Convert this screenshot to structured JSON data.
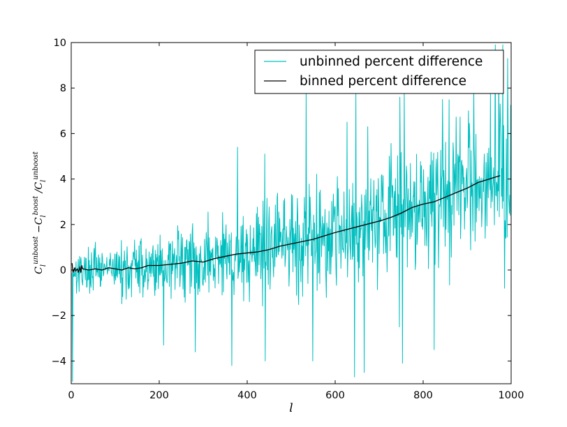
{
  "chart_data": {
    "type": "line",
    "title": "",
    "xlabel": "l",
    "ylabel_parts": [
      "C",
      "l",
      "unboost",
      " −C",
      "l",
      "boost",
      " /C",
      "l",
      "unboost"
    ],
    "xlim": [
      0,
      1000
    ],
    "ylim": [
      -5,
      10
    ],
    "xticks": [
      0,
      200,
      400,
      600,
      800,
      1000
    ],
    "xtick_labels": [
      "0",
      "200",
      "400",
      "600",
      "800",
      "1000"
    ],
    "yticks": [
      -4,
      -2,
      0,
      2,
      4,
      6,
      8,
      10
    ],
    "ytick_labels": [
      "−4",
      "−2",
      "0",
      "2",
      "4",
      "6",
      "8",
      "10"
    ],
    "grid": false,
    "legend_position": "top-right",
    "series": [
      {
        "name": "unbinned percent difference",
        "color": "#00bfbf",
        "kind": "noisy",
        "x_start": 2,
        "x_end": 1000,
        "x_step": 1,
        "trend_x": [
          2,
          30,
          100,
          200,
          300,
          400,
          500,
          600,
          700,
          800,
          900,
          1000
        ],
        "trend_y": [
          0.0,
          0.0,
          0.0,
          0.2,
          0.4,
          0.75,
          1.15,
          1.75,
          2.25,
          3.0,
          3.7,
          4.3
        ],
        "spread_x": [
          2,
          100,
          200,
          300,
          400,
          500,
          600,
          700,
          800,
          900,
          1000
        ],
        "spread_y": [
          0.6,
          0.8,
          1.0,
          1.2,
          1.4,
          1.6,
          1.8,
          1.9,
          2.0,
          2.1,
          2.2
        ],
        "seed": 17,
        "spikes": [
          {
            "x": 3,
            "y": -4.9
          },
          {
            "x": 210,
            "y": -3.3
          },
          {
            "x": 282,
            "y": -3.6
          },
          {
            "x": 365,
            "y": -4.2
          },
          {
            "x": 378,
            "y": 5.4
          },
          {
            "x": 441,
            "y": -4.0
          },
          {
            "x": 440,
            "y": 5.1
          },
          {
            "x": 534,
            "y": 7.9
          },
          {
            "x": 549,
            "y": -4.0
          },
          {
            "x": 627,
            "y": 6.5
          },
          {
            "x": 644,
            "y": -4.7
          },
          {
            "x": 647,
            "y": 7.9
          },
          {
            "x": 666,
            "y": -4.5
          },
          {
            "x": 674,
            "y": 6.3
          },
          {
            "x": 746,
            "y": -2.5
          },
          {
            "x": 747,
            "y": 7.6
          },
          {
            "x": 753,
            "y": -4.1
          },
          {
            "x": 757,
            "y": 8.0
          },
          {
            "x": 825,
            "y": -3.5
          },
          {
            "x": 844,
            "y": 7.5
          },
          {
            "x": 903,
            "y": 7.0
          },
          {
            "x": 915,
            "y": 8.1
          },
          {
            "x": 953,
            "y": 7.8
          },
          {
            "x": 964,
            "y": 9.9
          },
          {
            "x": 972,
            "y": 9.5
          },
          {
            "x": 975,
            "y": 7.3
          },
          {
            "x": 981,
            "y": 9.9
          },
          {
            "x": 985,
            "y": -0.8
          },
          {
            "x": 992,
            "y": 9.3
          },
          {
            "x": 996,
            "y": 2.5
          }
        ]
      },
      {
        "name": "binned percent difference",
        "color": "#000000",
        "kind": "line",
        "x": [
          2,
          4,
          6,
          8,
          10,
          12,
          14,
          16,
          18,
          20,
          22,
          24,
          26,
          40,
          55,
          70,
          85,
          100,
          115,
          130,
          145,
          160,
          175,
          200,
          225,
          250,
          275,
          300,
          325,
          350,
          375,
          400,
          425,
          450,
          475,
          500,
          550,
          600,
          650,
          700,
          725,
          750,
          775,
          800,
          825,
          850,
          875,
          900,
          925,
          950,
          975
        ],
        "y": [
          0.3,
          -0.1,
          0.0,
          0.1,
          -0.05,
          0.0,
          0.05,
          -0.1,
          0.0,
          0.15,
          -0.1,
          0.2,
          0.05,
          0.0,
          0.05,
          0.0,
          0.1,
          0.05,
          0.0,
          0.1,
          0.05,
          0.1,
          0.2,
          0.2,
          0.25,
          0.3,
          0.4,
          0.35,
          0.5,
          0.6,
          0.7,
          0.75,
          0.8,
          0.9,
          1.05,
          1.15,
          1.35,
          1.65,
          1.9,
          2.15,
          2.3,
          2.5,
          2.75,
          2.9,
          3.0,
          3.2,
          3.4,
          3.6,
          3.85,
          4.0,
          4.15
        ]
      }
    ]
  }
}
